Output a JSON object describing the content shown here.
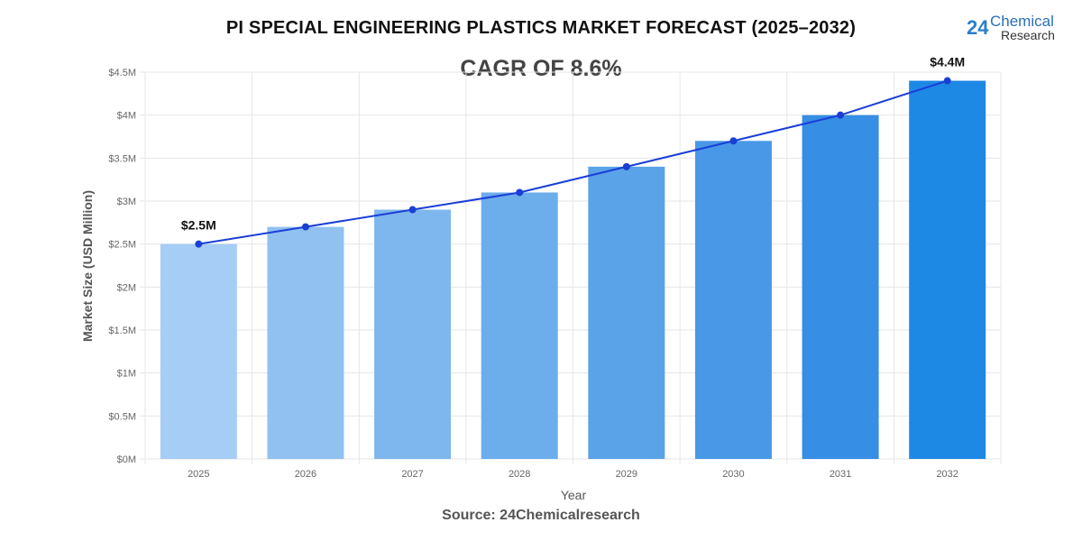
{
  "chart_data": {
    "type": "bar",
    "title": "PI SPECIAL ENGINEERING PLASTICS MARKET FORECAST (2025–2032)",
    "subtitle": "CAGR OF 8.6%",
    "xlabel": "Year",
    "ylabel": "Market Size (USD Million)",
    "categories": [
      "2025",
      "2026",
      "2027",
      "2028",
      "2029",
      "2030",
      "2031",
      "2032"
    ],
    "values": [
      2.5,
      2.7,
      2.9,
      3.1,
      3.4,
      3.7,
      4.0,
      4.4
    ],
    "overlay_line": {
      "type": "line",
      "values": [
        2.5,
        2.7,
        2.9,
        3.1,
        3.4,
        3.7,
        4.0,
        4.4
      ],
      "color": "#1a3fd6"
    },
    "data_labels": [
      {
        "category": "2025",
        "text": "$2.5M"
      },
      {
        "category": "2032",
        "text": "$4.4M"
      }
    ],
    "ylim": [
      0,
      4.5
    ],
    "yticks": [
      0,
      0.5,
      1,
      1.5,
      2,
      2.5,
      3,
      3.5,
      4,
      4.5
    ],
    "ytick_labels": [
      "$0M",
      "$0.5M",
      "$1M",
      "$1.5M",
      "$2M",
      "$2.5M",
      "$3M",
      "$3.5M",
      "$4M",
      "$4.5M"
    ],
    "grid": true,
    "legend": "none",
    "bar_colors": [
      "#a5cdf5",
      "#90c1f1",
      "#7eb7ee",
      "#6cadec",
      "#5aa3e9",
      "#4898e7",
      "#368ee5",
      "#1e88e5"
    ]
  },
  "logo": {
    "number": "24",
    "line1": "Chemical",
    "line2": "Research"
  },
  "source": "Source: 24Chemicalresearch"
}
